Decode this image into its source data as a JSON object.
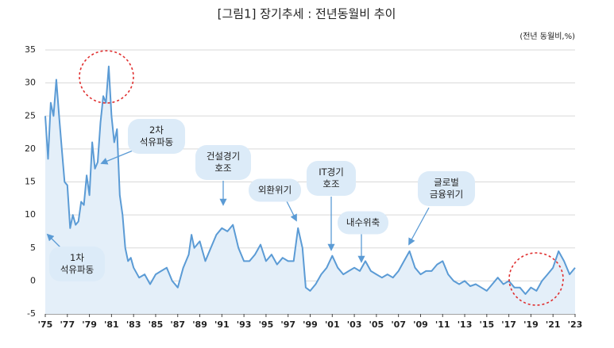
{
  "chart_data": {
    "type": "line",
    "title": "[그림1] 장기추세 : 전년동월비 추이",
    "unit_label": "(전년 동월비,%)",
    "x": [
      1975.0,
      1975.25,
      1975.5,
      1975.75,
      1976.0,
      1976.25,
      1976.5,
      1976.75,
      1977.0,
      1977.25,
      1977.5,
      1977.75,
      1978.0,
      1978.25,
      1978.5,
      1978.75,
      1979.0,
      1979.25,
      1979.5,
      1979.75,
      1980.0,
      1980.25,
      1980.5,
      1980.75,
      1981.0,
      1981.25,
      1981.5,
      1981.75,
      1982.0,
      1982.25,
      1982.5,
      1982.75,
      1983.0,
      1983.5,
      1984.0,
      1984.5,
      1985.0,
      1985.5,
      1986.0,
      1986.5,
      1987.0,
      1987.5,
      1988.0,
      1988.25,
      1988.5,
      1989.0,
      1989.5,
      1990.0,
      1990.5,
      1991.0,
      1991.5,
      1992.0,
      1992.5,
      1993.0,
      1993.5,
      1994.0,
      1994.5,
      1995.0,
      1995.5,
      1996.0,
      1996.5,
      1997.0,
      1997.5,
      1997.9,
      1998.3,
      1998.6,
      1999.0,
      1999.5,
      2000.0,
      2000.5,
      2001.0,
      2001.5,
      2002.0,
      2002.5,
      2003.0,
      2003.5,
      2004.0,
      2004.5,
      2005.0,
      2005.5,
      2006.0,
      2006.5,
      2007.0,
      2007.5,
      2008.0,
      2008.5,
      2009.0,
      2009.5,
      2010.0,
      2010.5,
      2011.0,
      2011.5,
      2012.0,
      2012.5,
      2013.0,
      2013.5,
      2014.0,
      2014.5,
      2015.0,
      2015.5,
      2016.0,
      2016.5,
      2017.0,
      2017.5,
      2018.0,
      2018.5,
      2019.0,
      2019.5,
      2020.0,
      2020.5,
      2021.0,
      2021.5,
      2022.0,
      2022.5,
      2023.0
    ],
    "series": [
      {
        "name": "전년동월비",
        "color": "#5b9bd5",
        "fill": "#e4eff9",
        "values": [
          25,
          18.5,
          27,
          25,
          30.5,
          25,
          20,
          15,
          14.5,
          8,
          10,
          8.5,
          9,
          12,
          11.5,
          16,
          13,
          21,
          17,
          18,
          24,
          28,
          27,
          32.5,
          25,
          21,
          23,
          13,
          10,
          5,
          3,
          3.5,
          2,
          0.5,
          1,
          -0.5,
          1,
          1.5,
          2,
          0,
          -1,
          2,
          4,
          7,
          5,
          6,
          3,
          5,
          7,
          8,
          7.5,
          8.5,
          5,
          3,
          3,
          4,
          5.5,
          3,
          4,
          2.5,
          3.5,
          3,
          3,
          8,
          5,
          -1,
          -1.5,
          -0.5,
          1,
          2,
          3.8,
          2,
          1,
          1.5,
          2,
          1.5,
          3,
          1.5,
          1,
          0.5,
          1,
          0.5,
          1.5,
          3,
          4.5,
          2,
          1,
          1.5,
          1.5,
          2.5,
          3,
          1,
          0,
          -0.5,
          0,
          -0.8,
          -0.5,
          -1,
          -1.5,
          -0.5,
          0.5,
          -0.5,
          0,
          -1,
          -1,
          -2,
          -1,
          -1.5,
          0,
          1,
          2,
          4.5,
          3,
          1,
          2
        ]
      }
    ],
    "xlim": [
      1975,
      2023
    ],
    "xticks": [
      {
        "value": 1975,
        "label": "'75"
      },
      {
        "value": 1977,
        "label": "'77"
      },
      {
        "value": 1979,
        "label": "'79"
      },
      {
        "value": 1981,
        "label": "'81"
      },
      {
        "value": 1983,
        "label": "'83"
      },
      {
        "value": 1985,
        "label": "'85"
      },
      {
        "value": 1987,
        "label": "'87"
      },
      {
        "value": 1989,
        "label": "'89"
      },
      {
        "value": 1991,
        "label": "'91"
      },
      {
        "value": 1993,
        "label": "'93"
      },
      {
        "value": 1995,
        "label": "'95"
      },
      {
        "value": 1997,
        "label": "'97"
      },
      {
        "value": 1999,
        "label": "'99"
      },
      {
        "value": 2001,
        "label": "'01"
      },
      {
        "value": 2003,
        "label": "'03"
      },
      {
        "value": 2005,
        "label": "'05"
      },
      {
        "value": 2007,
        "label": "'07"
      },
      {
        "value": 2009,
        "label": "'09"
      },
      {
        "value": 2011,
        "label": "'11"
      },
      {
        "value": 2013,
        "label": "'13"
      },
      {
        "value": 2015,
        "label": "'15"
      },
      {
        "value": 2017,
        "label": "'17"
      },
      {
        "value": 2019,
        "label": "'19"
      },
      {
        "value": 2021,
        "label": "'21"
      },
      {
        "value": 2023,
        "label": "'23"
      }
    ],
    "ylim": [
      -5,
      35
    ],
    "yticks": [
      -5,
      0,
      5,
      10,
      15,
      20,
      25,
      30,
      35
    ],
    "grid": true,
    "annotations": [
      {
        "lines": [
          "1차",
          "석유파동"
        ]
      },
      {
        "lines": [
          "2차",
          "석유파동"
        ]
      },
      {
        "lines": [
          "건설경기",
          "호조"
        ]
      },
      {
        "lines": [
          "외환위기"
        ]
      },
      {
        "lines": [
          "IT경기",
          "호조"
        ]
      },
      {
        "lines": [
          "내수위축"
        ]
      },
      {
        "lines": [
          "글로벌",
          "금융위기"
        ]
      }
    ]
  }
}
